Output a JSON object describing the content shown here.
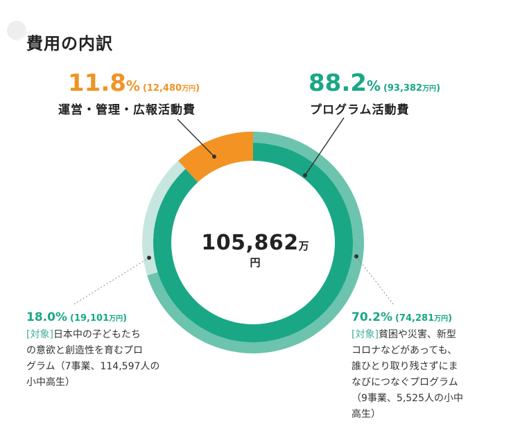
{
  "title": "費用の内訳",
  "total": {
    "value": "105,862",
    "unit": "万円"
  },
  "labels": {
    "admin": {
      "pct": "11.8",
      "amount": "12,480",
      "name": "運営・管理・広報活動費"
    },
    "program": {
      "pct": "88.2",
      "amount": "93,382",
      "name": "プログラム活動費"
    },
    "japan": {
      "pct": "18.0",
      "amount": "19,101",
      "desc_lines": [
        "日本中の子どもたち",
        "の意欲と創造性を育むプロ",
        "グラム（7事業、114,597人の",
        "小中高生）"
      ]
    },
    "intl": {
      "pct": "70.2",
      "amount": "74,281",
      "desc_lines": [
        "貧困や災害、新型",
        "コロナなどがあっても、",
        "誰ひとり取り残さずにま",
        "なびにつなぐプログラム",
        "（9事業、5,525人の小中",
        "高生）"
      ]
    }
  },
  "common": {
    "percent_sign": "%",
    "amount_open": "(",
    "amount_close": ")",
    "amount_unit": "万円",
    "tag": "[対象]"
  },
  "chart_data": {
    "type": "pie",
    "title": "費用の内訳",
    "total": 105862,
    "unit": "万円",
    "inner_ring": [
      {
        "name": "運営・管理・広報活動費",
        "percent": 11.8,
        "value": 12480,
        "color": "#f39323"
      },
      {
        "name": "プログラム活動費",
        "percent": 88.2,
        "value": 93382,
        "color": "#1aa786"
      }
    ],
    "outer_ring": [
      {
        "name": "日本中の子どもたちの意欲と創造性を育むプログラム（7事業、114,597人の小中高生）",
        "percent": 18.0,
        "value": 19101,
        "color": "#c7e6df"
      },
      {
        "name": "貧困や災害、新型コロナなどがあっても、誰ひとり取り残さずにまなびにつなぐプログラム（9事業、5,525人の小中高生）",
        "percent": 70.2,
        "value": 74281,
        "color": "#6cc3ae"
      }
    ]
  }
}
